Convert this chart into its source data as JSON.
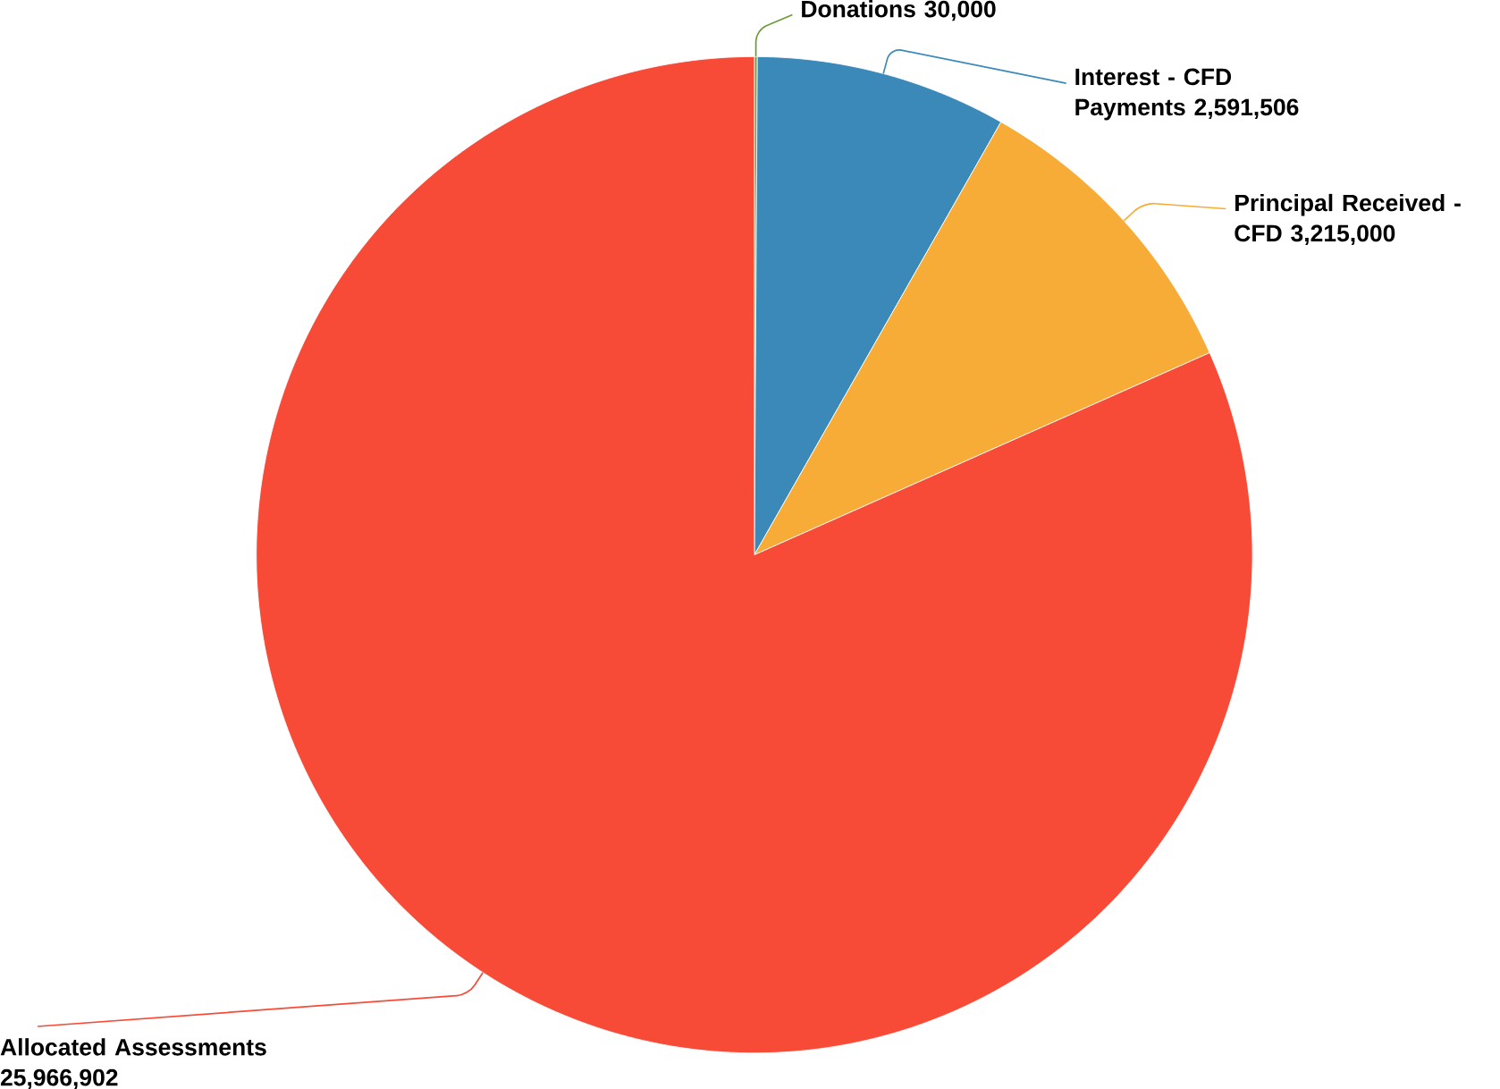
{
  "chart_data": {
    "type": "pie",
    "categories": [
      "Donations",
      "Interest - CFD Payments",
      "Principal Received - CFD",
      "Allocated Assessments"
    ],
    "values": [
      30000,
      2591506,
      3215000,
      25966902
    ],
    "value_labels": [
      "30,000",
      "2,591,506",
      "3,215,000",
      "25,966,902"
    ],
    "colors": [
      "#6a9a3a",
      "#3a89b8",
      "#f7ac38",
      "#f74b38"
    ]
  }
}
